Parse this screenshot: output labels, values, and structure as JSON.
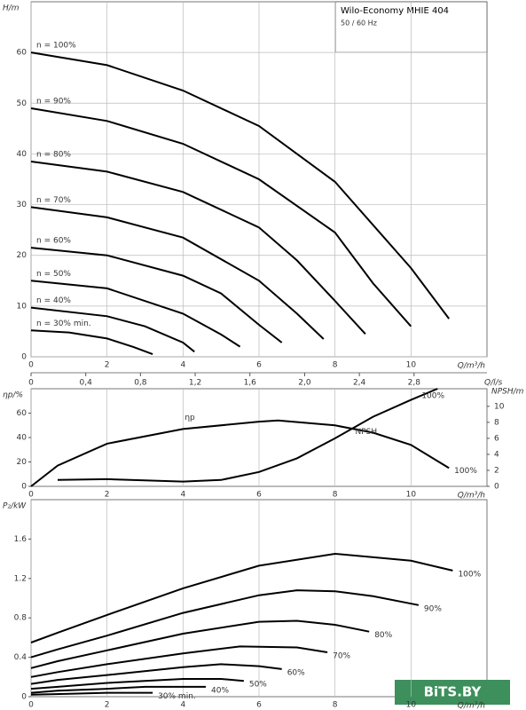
{
  "title": "Wilo-Economy MHIE 404",
  "subtitle": "50 / 60 Hz",
  "watermark": "BiTS.BY",
  "chart_data": [
    {
      "type": "line",
      "ylabel": "H/m",
      "xlabel": "Q/m³/h",
      "x2label": "Q/l/s",
      "xlim": [
        0,
        12
      ],
      "xticks": [
        0,
        2,
        4,
        6,
        8,
        10
      ],
      "x2lim": [
        0,
        3.333
      ],
      "x2ticks": [
        0,
        {
          "value": 0.4,
          "label": "0,4"
        },
        {
          "value": 0.8,
          "label": "0,8"
        },
        {
          "value": 1.2,
          "label": "1,2"
        },
        {
          "value": 1.6,
          "label": "1,6"
        },
        {
          "value": 2.0,
          "label": "2,0"
        },
        {
          "value": 2.4,
          "label": "2,4"
        },
        {
          "value": 2.8,
          "label": "2,8"
        }
      ],
      "ylim": [
        0,
        70
      ],
      "yticks": [
        0,
        10,
        20,
        30,
        40,
        50,
        60
      ],
      "grid": "both",
      "series": [
        {
          "name": "n = 100%",
          "color": "#000000",
          "x": [
            0,
            2,
            4,
            6,
            8,
            10,
            11
          ],
          "values": [
            60,
            57.5,
            52.5,
            45.5,
            34.5,
            17.5,
            7.5
          ]
        },
        {
          "name": "n = 90%",
          "color": "#000000",
          "x": [
            0,
            2,
            4,
            6,
            8,
            9,
            10
          ],
          "values": [
            49,
            46.5,
            42,
            35,
            24.5,
            14.5,
            6
          ]
        },
        {
          "name": "n = 80%",
          "color": "#000000",
          "x": [
            0,
            2,
            4,
            6,
            7,
            8,
            8.8
          ],
          "values": [
            38.5,
            36.5,
            32.5,
            25.5,
            19,
            11,
            4.5
          ]
        },
        {
          "name": "n = 70%",
          "color": "#000000",
          "x": [
            0,
            2,
            4,
            6,
            7,
            7.7
          ],
          "values": [
            29.5,
            27.5,
            23.5,
            15,
            8.5,
            3.5
          ]
        },
        {
          "name": "n = 60%",
          "color": "#000000",
          "x": [
            0,
            2,
            4,
            5,
            6,
            6.6
          ],
          "values": [
            21.5,
            20,
            16,
            12.5,
            6.3,
            2.8
          ]
        },
        {
          "name": "n = 50%",
          "color": "#000000",
          "x": [
            0,
            2,
            4,
            5,
            5.5
          ],
          "values": [
            15,
            13.5,
            8.5,
            4.4,
            2
          ]
        },
        {
          "name": "n = 40%",
          "color": "#000000",
          "x": [
            0,
            2,
            3,
            4,
            4.3
          ],
          "values": [
            9.7,
            8,
            6,
            2.8,
            1
          ]
        },
        {
          "name": "n = 30% min.",
          "color": "#000000",
          "x": [
            0,
            1,
            2,
            2.7,
            3.2
          ],
          "values": [
            5.2,
            4.8,
            3.6,
            1.9,
            0.5
          ]
        }
      ]
    },
    {
      "type": "line",
      "ylabel": "ηp/%",
      "y2label": "NPSH/m",
      "xlabel": "Q/m³/h",
      "xlim": [
        0,
        12
      ],
      "xticks": [
        0,
        2,
        4,
        6,
        8,
        10
      ],
      "ylim": [
        0,
        80
      ],
      "yticks": [
        0,
        20,
        40,
        60
      ],
      "y2lim": [
        0,
        12.2
      ],
      "y2ticks": [
        0,
        2,
        4,
        6,
        8,
        10
      ],
      "grid": "x",
      "series": [
        {
          "name": "ηp",
          "end_label": "100%",
          "color": "#000000",
          "x": [
            0,
            0.7,
            2,
            4,
            6,
            6.5,
            8,
            9,
            10,
            11
          ],
          "values": [
            0,
            17,
            35,
            47,
            53,
            54,
            50,
            44,
            34,
            15
          ]
        },
        {
          "name": "NPSH",
          "end_label": "100%",
          "axis": "y2",
          "color": "#000000",
          "x": [
            0.7,
            2,
            4,
            5,
            6,
            7,
            8,
            9,
            10,
            10.7
          ],
          "values": [
            0.8,
            0.9,
            0.6,
            0.8,
            1.8,
            3.5,
            6.0,
            8.7,
            10.8,
            12.2
          ]
        }
      ]
    },
    {
      "type": "line",
      "ylabel": "P₂/kW",
      "xlabel": "Q/m³/h",
      "xlim": [
        0,
        12
      ],
      "xticks": [
        0,
        2,
        4,
        6,
        8,
        10
      ],
      "ylim": [
        0,
        2
      ],
      "yticks": [
        0,
        0.4,
        0.8,
        1.2,
        1.6
      ],
      "grid": "x",
      "series": [
        {
          "name": "100%",
          "color": "#000000",
          "x": [
            0,
            0.7,
            2,
            4,
            6,
            8,
            10,
            11.1
          ],
          "values": [
            0.55,
            0.65,
            0.83,
            1.1,
            1.33,
            1.45,
            1.38,
            1.28
          ]
        },
        {
          "name": "90%",
          "color": "#000000",
          "x": [
            0,
            0.7,
            2,
            4,
            6,
            7,
            8,
            9,
            10.2
          ],
          "values": [
            0.4,
            0.48,
            0.62,
            0.85,
            1.03,
            1.08,
            1.07,
            1.02,
            0.93
          ]
        },
        {
          "name": "80%",
          "color": "#000000",
          "x": [
            0,
            0.7,
            2,
            4,
            6,
            7,
            8,
            8.9
          ],
          "values": [
            0.29,
            0.36,
            0.47,
            0.64,
            0.76,
            0.77,
            0.73,
            0.66
          ]
        },
        {
          "name": "70%",
          "color": "#000000",
          "x": [
            0,
            0.7,
            2,
            4,
            5.5,
            7,
            7.8
          ],
          "values": [
            0.2,
            0.25,
            0.33,
            0.44,
            0.51,
            0.5,
            0.45
          ]
        },
        {
          "name": "60%",
          "color": "#000000",
          "x": [
            0,
            0.7,
            2,
            4,
            5,
            6,
            6.6
          ],
          "values": [
            0.13,
            0.17,
            0.22,
            0.3,
            0.33,
            0.31,
            0.28
          ]
        },
        {
          "name": "50%",
          "color": "#000000",
          "x": [
            0,
            0.7,
            2,
            4,
            5,
            5.6
          ],
          "values": [
            0.08,
            0.1,
            0.14,
            0.18,
            0.18,
            0.16
          ]
        },
        {
          "name": "40%",
          "color": "#000000",
          "x": [
            0,
            0.7,
            2,
            3,
            4,
            4.6
          ],
          "values": [
            0.04,
            0.06,
            0.08,
            0.1,
            0.1,
            0.1
          ]
        },
        {
          "name": "30% min.",
          "color": "#000000",
          "x": [
            0,
            1,
            2,
            2.7,
            3.2
          ],
          "values": [
            0.02,
            0.03,
            0.04,
            0.04,
            0.04
          ]
        }
      ]
    }
  ]
}
